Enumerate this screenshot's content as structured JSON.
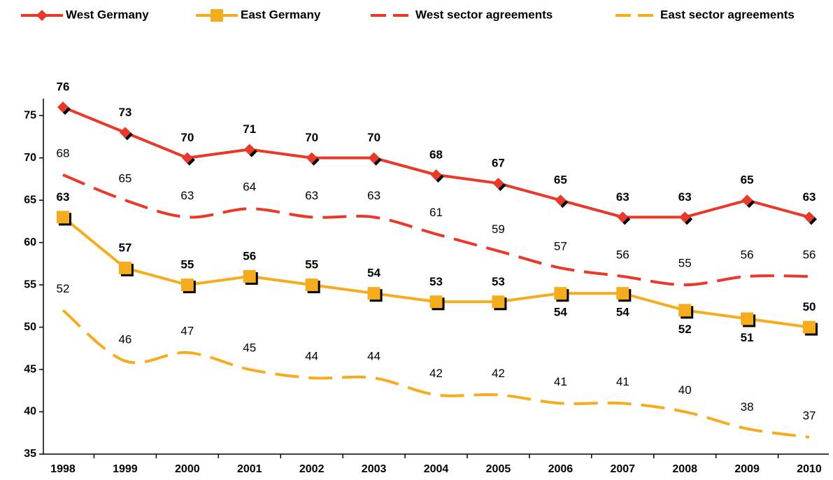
{
  "chart_data": {
    "type": "line",
    "categories": [
      "1998",
      "1999",
      "2000",
      "2001",
      "2002",
      "2003",
      "2004",
      "2005",
      "2006",
      "2007",
      "2008",
      "2009",
      "2010"
    ],
    "series": [
      {
        "name": "West Germany",
        "color": "#e8392a",
        "style": "solid",
        "marker": "diamond",
        "values": [
          76,
          73,
          70,
          71,
          70,
          70,
          68,
          67,
          65,
          63,
          63,
          65,
          63
        ]
      },
      {
        "name": "East Germany",
        "color": "#f5ad1f",
        "style": "solid",
        "marker": "square",
        "values": [
          63,
          57,
          55,
          56,
          55,
          54,
          53,
          53,
          54,
          54,
          52,
          51,
          50
        ]
      },
      {
        "name": "West sector agreements",
        "color": "#e8392a",
        "style": "dashed",
        "values": [
          68,
          65,
          63,
          64,
          63,
          63,
          61,
          59,
          57,
          56,
          55,
          56,
          56
        ]
      },
      {
        "name": "East sector agreements",
        "color": "#f5ad1f",
        "style": "dashed",
        "values": [
          52,
          46,
          47,
          45,
          44,
          44,
          42,
          42,
          41,
          41,
          40,
          38,
          37
        ]
      }
    ],
    "ylim": [
      35,
      77
    ],
    "yticks": [
      35,
      40,
      45,
      50,
      55,
      60,
      65,
      70,
      75
    ],
    "grid": false,
    "legend": "top"
  }
}
